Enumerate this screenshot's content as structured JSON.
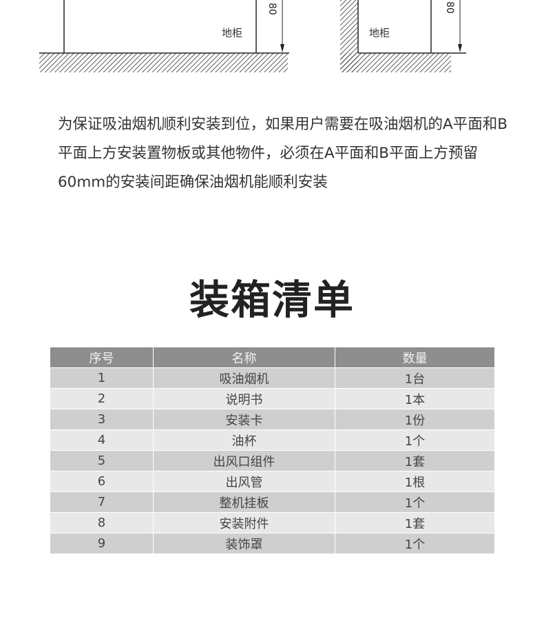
{
  "diagram": {
    "label_left": "地柜",
    "label_right": "地柜",
    "dim_left": "80",
    "dim_right": "80"
  },
  "paragraph": "为保证吸油烟机顺利安装到位，如果用户需要在吸油烟机的A平面和B平面上方安装置物板或其他物件，必须在A平面和B平面上方预留60mm的安装间距确保油烟机能顺利安装",
  "title": "装箱清单",
  "table": {
    "headers": [
      "序号",
      "名称",
      "数量"
    ],
    "rows": [
      [
        "1",
        "吸油烟机",
        "1台"
      ],
      [
        "2",
        "说明书",
        "1本"
      ],
      [
        "3",
        "安装卡",
        "1份"
      ],
      [
        "4",
        "油杯",
        "1个"
      ],
      [
        "5",
        "出风口组件",
        "1套"
      ],
      [
        "6",
        "出风管",
        "1根"
      ],
      [
        "7",
        "整机挂板",
        "1个"
      ],
      [
        "8",
        "安装附件",
        "1套"
      ],
      [
        "9",
        "装饰罩",
        "1个"
      ]
    ]
  }
}
